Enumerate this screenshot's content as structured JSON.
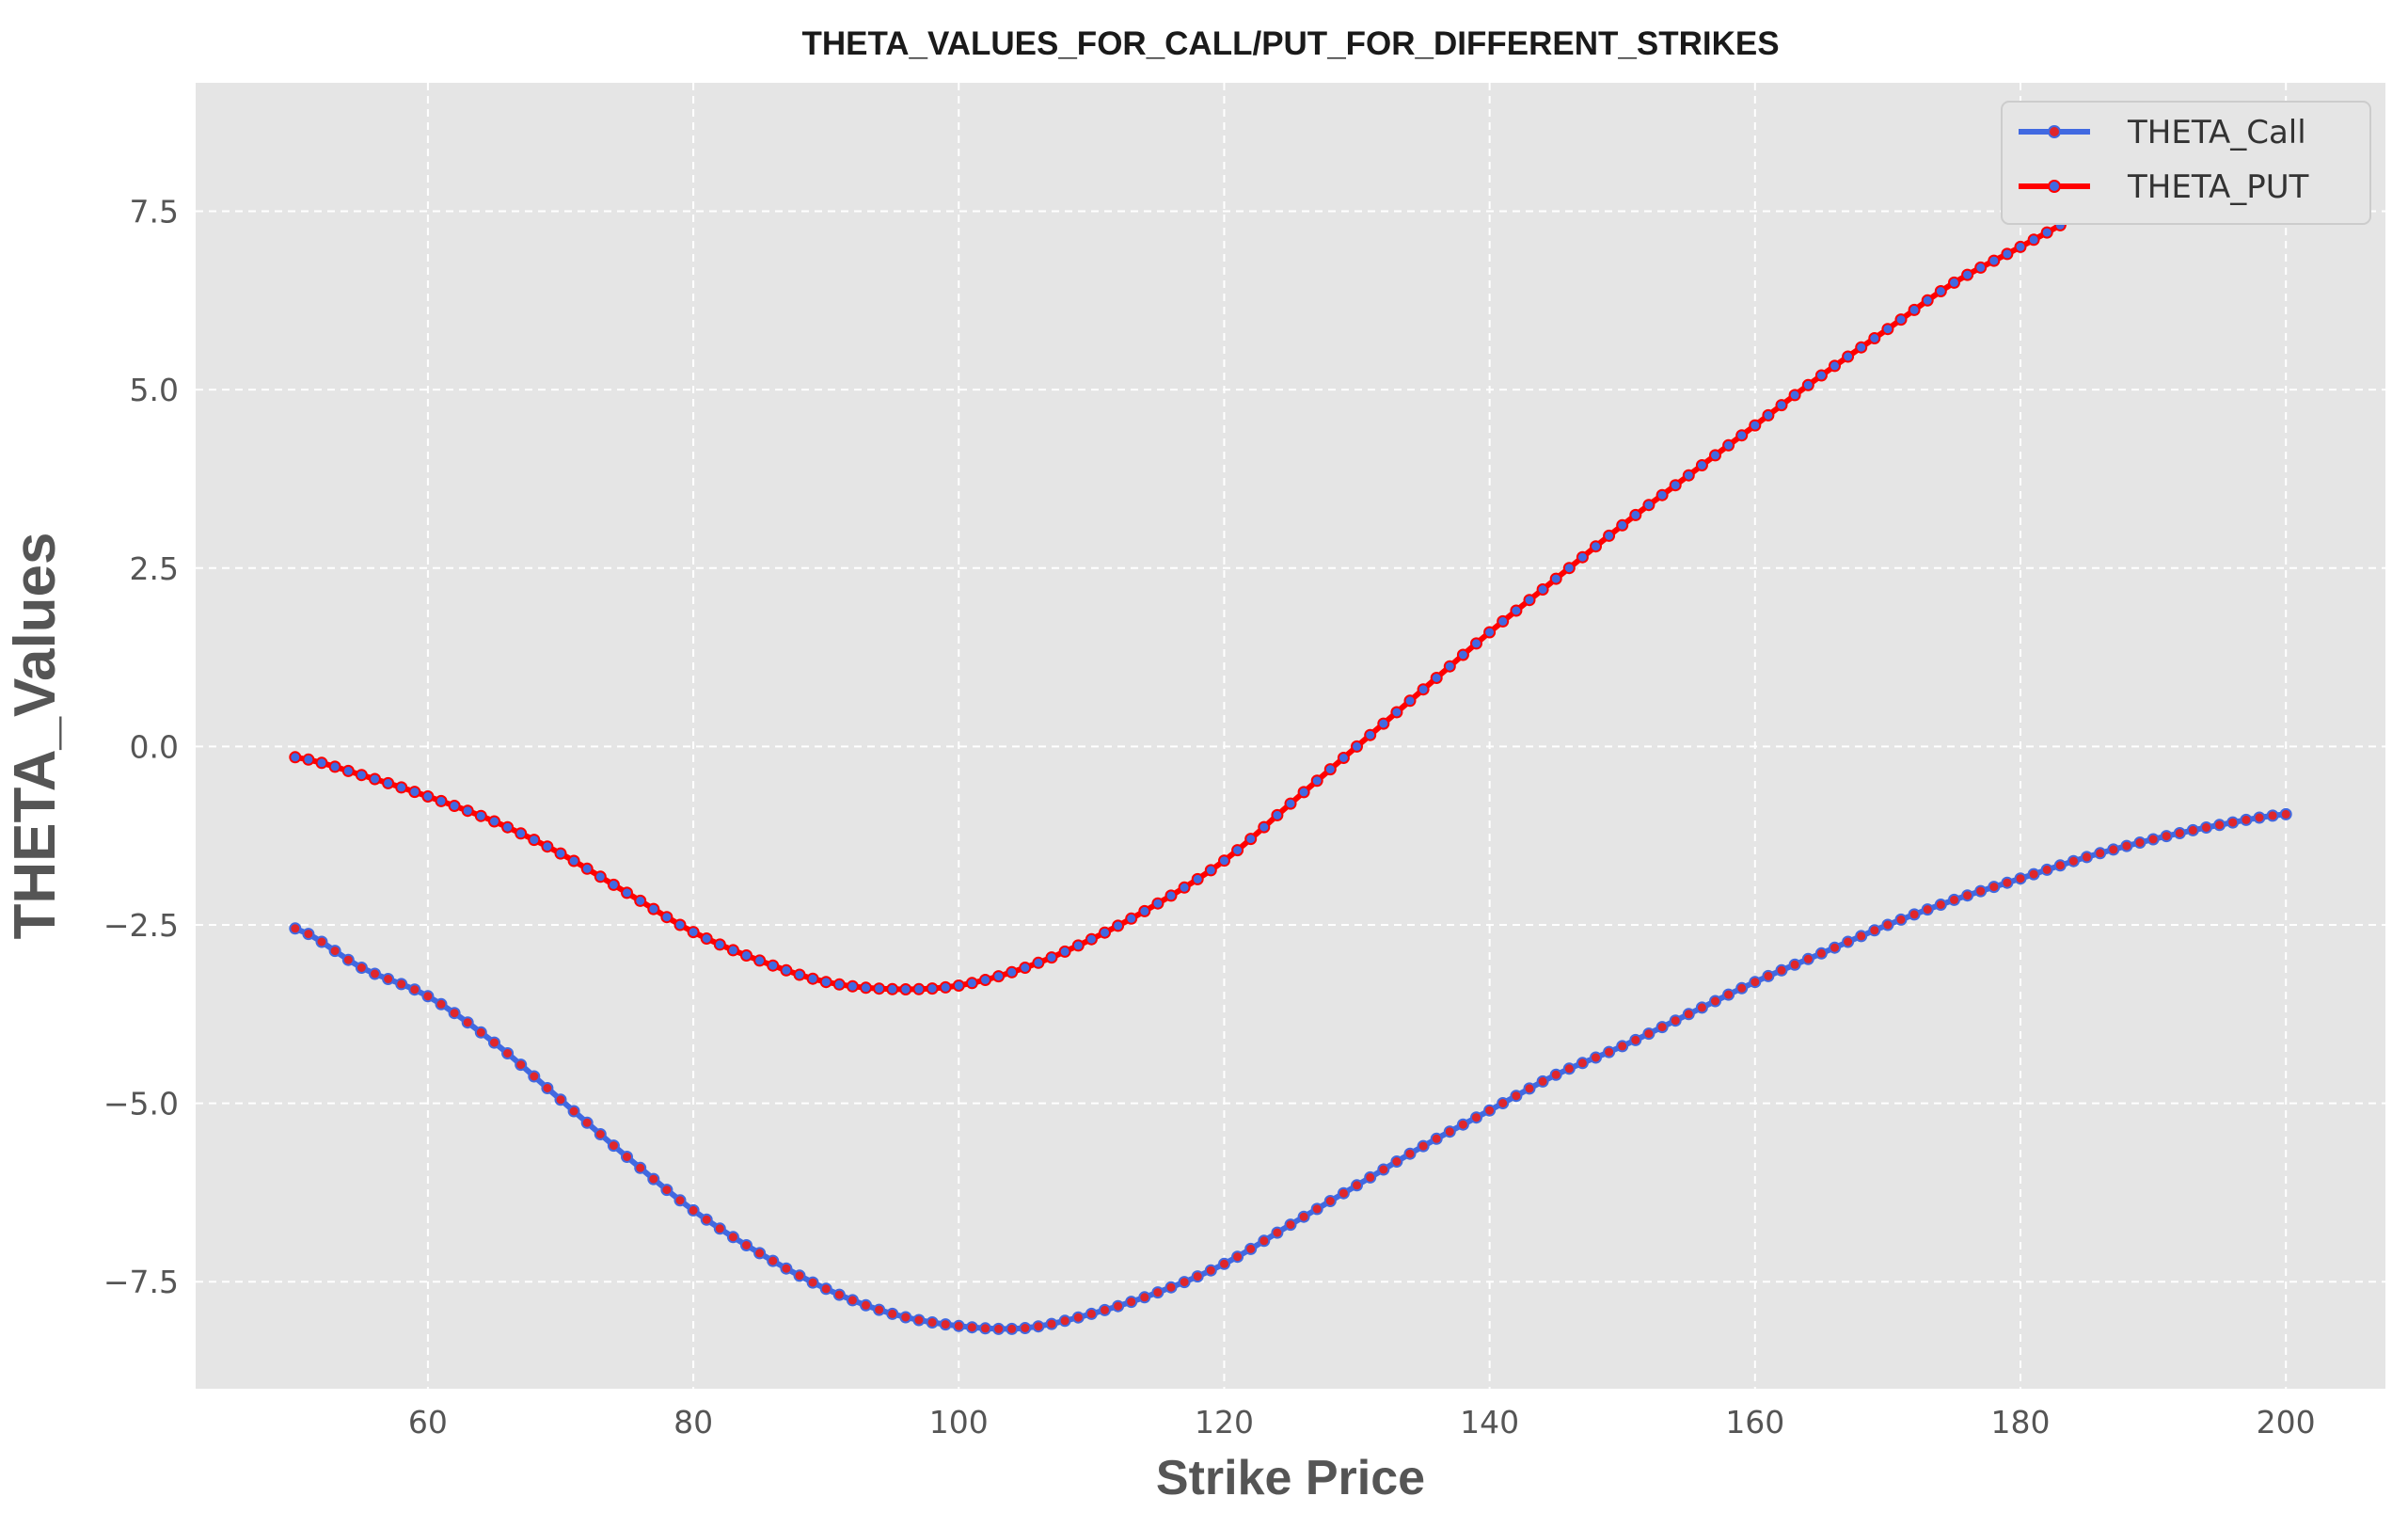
{
  "chart_data": {
    "type": "line",
    "title": "THETA_VALUES_FOR_CALL/PUT_FOR_DIFFERENT_STRIKES",
    "xlabel": "Strike Price",
    "ylabel": "THETA_Values",
    "xlim": [
      42.5,
      207.5
    ],
    "ylim": [
      -9.0,
      9.3
    ],
    "xticks": [
      60,
      80,
      100,
      120,
      140,
      160,
      180,
      200
    ],
    "xtick_labels": [
      "60",
      "80",
      "100",
      "120",
      "140",
      "160",
      "180",
      "200"
    ],
    "yticks": [
      -7.5,
      -5.0,
      -2.5,
      0.0,
      2.5,
      5.0,
      7.5
    ],
    "ytick_labels": [
      "−7.5",
      "−5.0",
      "−2.5",
      "0.0",
      "2.5",
      "5.0",
      "7.5"
    ],
    "grid": true,
    "legend_position": "top-right",
    "x": [
      50,
      55,
      60,
      65,
      70,
      75,
      80,
      85,
      90,
      95,
      100,
      105,
      110,
      115,
      120,
      125,
      130,
      135,
      140,
      145,
      150,
      155,
      160,
      165,
      170,
      175,
      180,
      185,
      190,
      195,
      200
    ],
    "series": [
      {
        "name": "THETA_Call",
        "color": "#4169e1",
        "marker_color": "#e0262b",
        "values": [
          -2.55,
          -3.1,
          -3.5,
          -4.15,
          -4.95,
          -5.75,
          -6.5,
          -7.1,
          -7.6,
          -7.95,
          -8.12,
          -8.15,
          -7.95,
          -7.65,
          -7.25,
          -6.7,
          -6.15,
          -5.6,
          -5.1,
          -4.6,
          -4.2,
          -3.75,
          -3.3,
          -2.9,
          -2.5,
          -2.15,
          -1.85,
          -1.55,
          -1.3,
          -1.1,
          -0.95
        ]
      },
      {
        "name": "THETA_PUT",
        "color": "#ff0000",
        "marker_color": "#4169e1",
        "values": [
          -0.15,
          -0.4,
          -0.7,
          -1.05,
          -1.5,
          -2.05,
          -2.6,
          -3.0,
          -3.3,
          -3.4,
          -3.35,
          -3.1,
          -2.7,
          -2.2,
          -1.6,
          -0.8,
          0.0,
          0.8,
          1.6,
          2.35,
          3.1,
          3.8,
          4.5,
          5.2,
          5.85,
          6.5,
          7.0,
          7.5,
          7.95,
          8.3,
          8.65
        ]
      }
    ]
  }
}
